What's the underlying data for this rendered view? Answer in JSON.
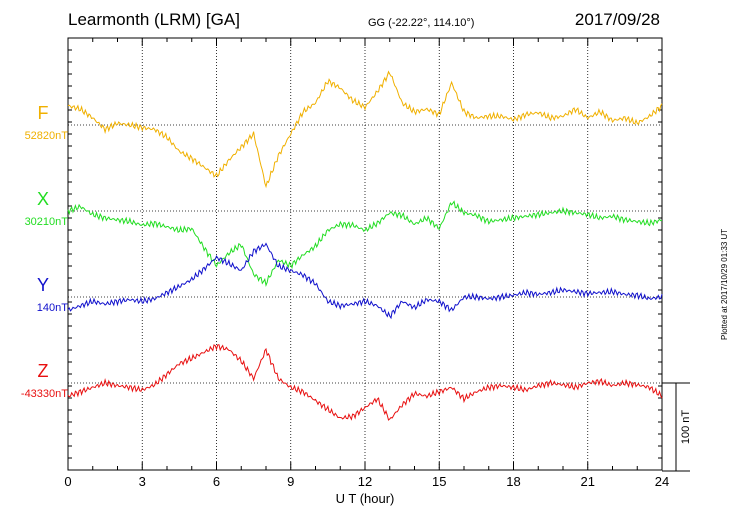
{
  "header": {
    "station": "Learmonth (LRM)  [GA]",
    "coords": "GG (-22.22°, 114.10°)",
    "date": "2017/09/28"
  },
  "side_note": "Plotted at 2017/10/29 01:33 UT",
  "colors": {
    "F": "#f0b000",
    "X": "#22dd22",
    "Y": "#1010cc",
    "Z": "#e81010"
  },
  "chart_data": {
    "type": "line",
    "xlabel": "U T (hour)",
    "xlim": [
      0,
      24
    ],
    "xticks": [
      0,
      3,
      6,
      9,
      12,
      15,
      18,
      21,
      24
    ],
    "scale_bar": "100 nT",
    "units": "nT",
    "series": [
      {
        "name": "F",
        "baseline_label": "52820nT",
        "x": [
          0,
          0.5,
          1,
          1.5,
          2,
          2.5,
          3,
          3.5,
          4,
          4.5,
          5,
          5.5,
          6,
          6.5,
          7,
          7.5,
          8,
          8.5,
          9,
          9.5,
          10,
          10.5,
          11,
          11.5,
          12,
          12.5,
          13,
          13.5,
          14,
          14.5,
          15,
          15.5,
          16,
          16.5,
          17,
          17.5,
          18,
          18.5,
          19,
          19.5,
          20,
          20.5,
          21,
          21.5,
          22,
          22.5,
          23,
          23.5,
          24
        ],
        "values": [
          22,
          18,
          8,
          -5,
          2,
          0,
          -3,
          -5,
          -14,
          -30,
          -38,
          -48,
          -58,
          -40,
          -25,
          -10,
          -70,
          -35,
          -10,
          15,
          25,
          50,
          42,
          28,
          20,
          38,
          60,
          25,
          15,
          18,
          12,
          48,
          15,
          8,
          10,
          10,
          6,
          12,
          14,
          8,
          10,
          18,
          8,
          15,
          5,
          8,
          2,
          10,
          22
        ]
      },
      {
        "name": "X",
        "baseline_label": "30210nT",
        "x": [
          0,
          0.5,
          1,
          1.5,
          2,
          2.5,
          3,
          3.5,
          4,
          4.5,
          5,
          5.5,
          6,
          6.5,
          7,
          7.5,
          8,
          8.5,
          9,
          9.5,
          10,
          10.5,
          11,
          11.5,
          12,
          12.5,
          13,
          13.5,
          14,
          14.5,
          15,
          15.5,
          16,
          16.5,
          17,
          17.5,
          18,
          18.5,
          19,
          19.5,
          20,
          20.5,
          21,
          21.5,
          22,
          22.5,
          23,
          23.5,
          24
        ],
        "values": [
          0,
          5,
          -4,
          -8,
          -10,
          -12,
          -16,
          -14,
          -18,
          -22,
          -20,
          -42,
          -62,
          -48,
          -38,
          -72,
          -82,
          -56,
          -62,
          -50,
          -40,
          -22,
          -15,
          -16,
          -22,
          -14,
          -2,
          -5,
          -15,
          -8,
          -20,
          10,
          -2,
          -5,
          -12,
          -10,
          -8,
          -6,
          -4,
          -2,
          0,
          -2,
          -4,
          -8,
          -6,
          -10,
          -12,
          -14,
          -10
        ]
      },
      {
        "name": "Y",
        "baseline_label": "140nT",
        "x": [
          0,
          0.5,
          1,
          1.5,
          2,
          2.5,
          3,
          3.5,
          4,
          4.5,
          5,
          5.5,
          6,
          6.5,
          7,
          7.5,
          8,
          8.5,
          9,
          9.5,
          10,
          10.5,
          11,
          11.5,
          12,
          12.5,
          13,
          13.5,
          14,
          14.5,
          15,
          15.5,
          16,
          16.5,
          17,
          17.5,
          18,
          18.5,
          19,
          19.5,
          20,
          20.5,
          21,
          21.5,
          22,
          22.5,
          23,
          23.5,
          24
        ],
        "values": [
          -15,
          -10,
          -5,
          -8,
          -5,
          -3,
          -5,
          -2,
          5,
          12,
          20,
          32,
          45,
          38,
          30,
          52,
          60,
          35,
          30,
          25,
          15,
          -5,
          -10,
          -8,
          -5,
          -10,
          -22,
          -5,
          -12,
          -3,
          -5,
          -15,
          0,
          0,
          -2,
          0,
          2,
          5,
          3,
          5,
          8,
          6,
          4,
          5,
          6,
          3,
          2,
          -2,
          0
        ]
      },
      {
        "name": "Z",
        "baseline_label": "-43330nT",
        "x": [
          0,
          0.5,
          1,
          1.5,
          2,
          2.5,
          3,
          3.5,
          4,
          4.5,
          5,
          5.5,
          6,
          6.5,
          7,
          7.5,
          8,
          8.5,
          9,
          9.5,
          10,
          10.5,
          11,
          11.5,
          12,
          12.5,
          13,
          13.5,
          14,
          14.5,
          15,
          15.5,
          16,
          16.5,
          17,
          17.5,
          18,
          18.5,
          19,
          19.5,
          20,
          20.5,
          21,
          21.5,
          22,
          22.5,
          23,
          23.5,
          24
        ],
        "values": [
          -15,
          -10,
          -5,
          0,
          -3,
          -5,
          -8,
          -2,
          10,
          22,
          28,
          35,
          42,
          38,
          25,
          5,
          38,
          5,
          -5,
          -10,
          -20,
          -30,
          -40,
          -38,
          -28,
          -18,
          -42,
          -25,
          -12,
          -15,
          -10,
          -5,
          -18,
          -10,
          -5,
          -3,
          -5,
          -8,
          -3,
          0,
          -2,
          -5,
          0,
          2,
          -3,
          0,
          -2,
          -5,
          -15
        ]
      }
    ]
  }
}
